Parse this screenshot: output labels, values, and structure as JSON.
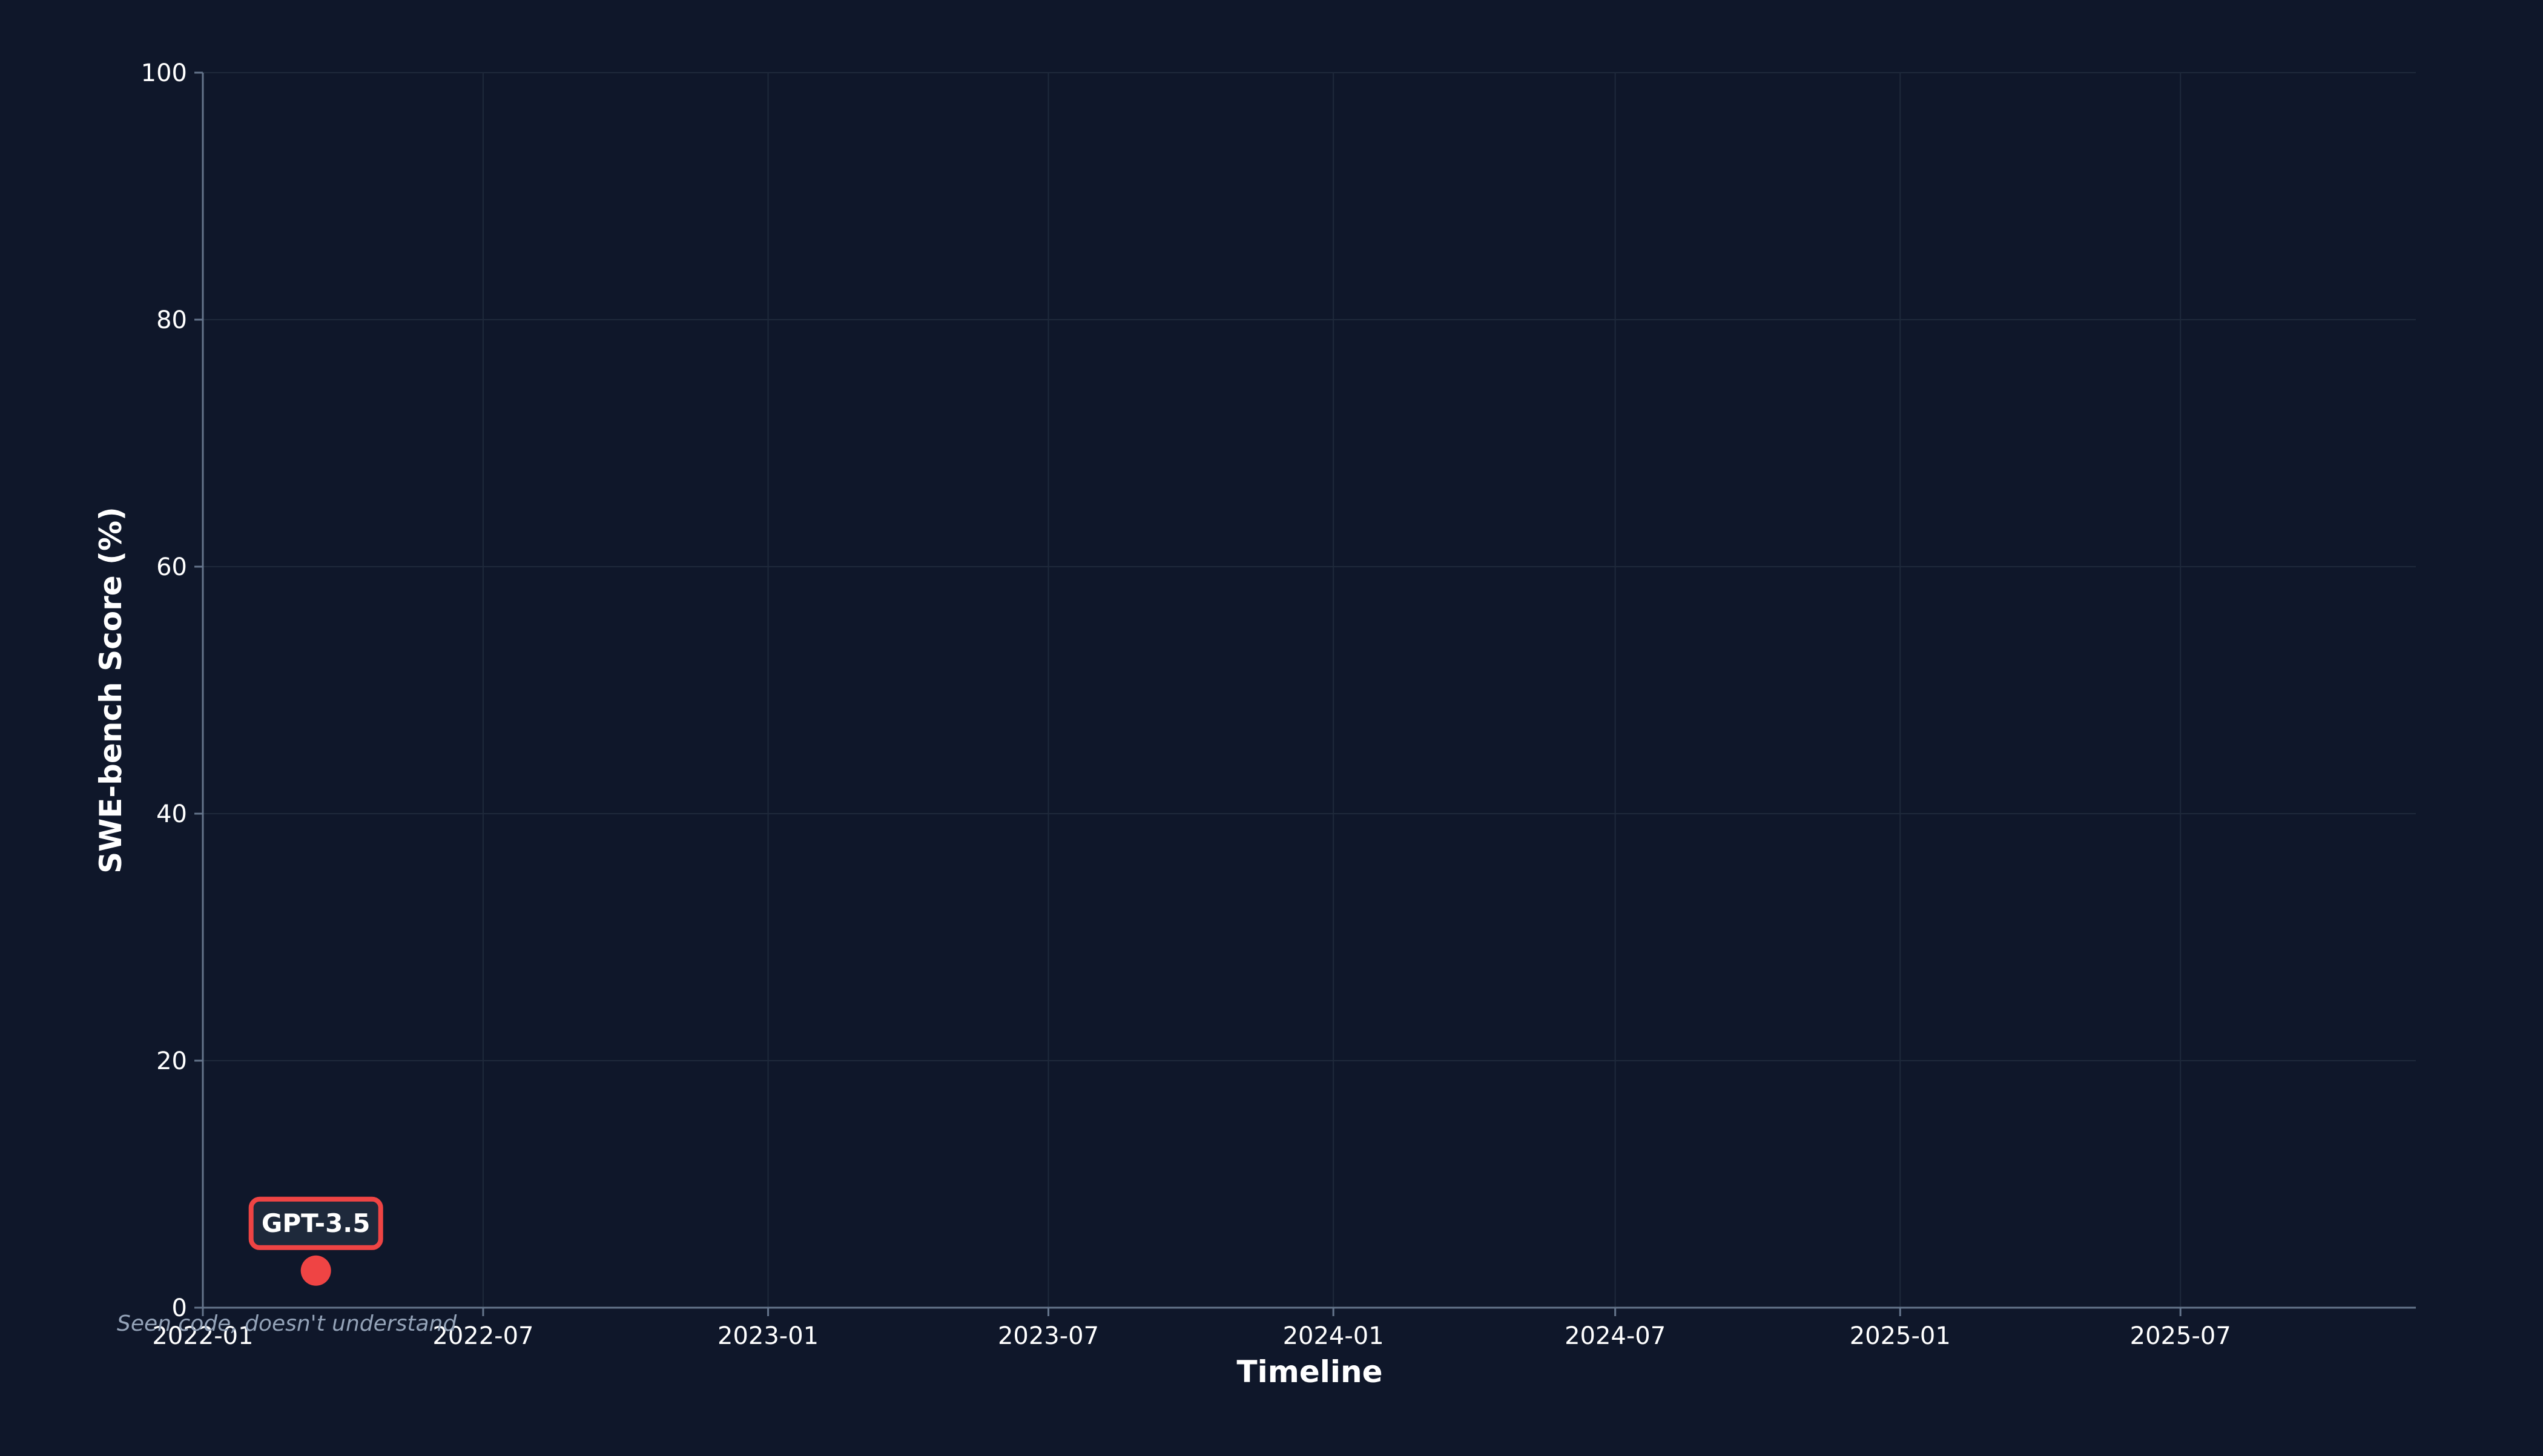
{
  "chart_data": {
    "type": "scatter",
    "xlabel": "Timeline",
    "ylabel": "SWE-bench Score (%)",
    "x_axis_type": "date",
    "xlim": [
      "2022-01-01",
      "2025-11-30"
    ],
    "ylim": [
      0,
      100
    ],
    "x_ticks": [
      "2022-01",
      "2022-07",
      "2023-01",
      "2023-07",
      "2024-01",
      "2024-07",
      "2025-01",
      "2025-07"
    ],
    "y_ticks": [
      0,
      20,
      40,
      60,
      80,
      100
    ],
    "grid": true,
    "points": [
      {
        "label": "GPT-3.5",
        "x": "2022-03-15",
        "y": 3,
        "annotation": "Seen code, doesn't understand",
        "color": "#ef4444"
      }
    ]
  },
  "colors": {
    "background": "#0f172a",
    "axis": "#64748b",
    "grid": "#1e293b",
    "text": "#ffffff",
    "annotation": "#94a3b8",
    "point": "#ef4444",
    "label_box_border": "#ef4444",
    "label_box_fill": "#1e293b"
  }
}
